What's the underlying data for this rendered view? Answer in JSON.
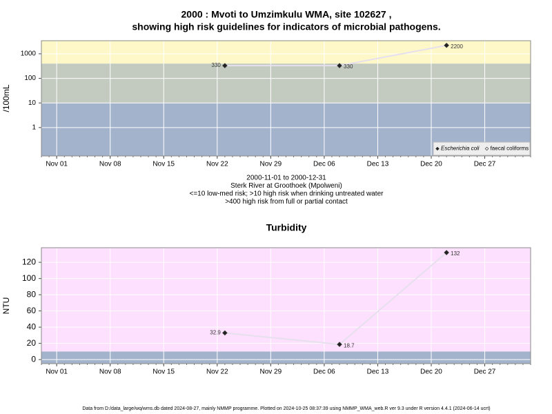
{
  "chart_data": [
    {
      "type": "line",
      "title": [
        "2000 : Mvoti to Umzimkulu WMA, site 102627 ,",
        "showing high risk guidelines for indicators of microbial pathogens."
      ],
      "ylabel": "/100mL",
      "notes": [
        "2000-11-01 to 2000-12-31",
        "Sterk River at Groothoek (Mpolweni)",
        "<=10 low-med risk; >10 high risk when drinking untreated water",
        ">400 high risk from full or partial contact"
      ],
      "log_y": true,
      "ylim": [
        0.07,
        3400
      ],
      "yticks": [
        1,
        10,
        100,
        1000
      ],
      "xlim": [
        "2000-10-30",
        "2001-01-02"
      ],
      "xticks": [
        {
          "value": "2000-11-01",
          "label": "Nov 01"
        },
        {
          "value": "2000-11-08",
          "label": "Nov 08"
        },
        {
          "value": "2000-11-15",
          "label": "Nov 15"
        },
        {
          "value": "2000-11-22",
          "label": "Nov 22"
        },
        {
          "value": "2000-11-29",
          "label": "Nov 29"
        },
        {
          "value": "2000-12-06",
          "label": "Dec 06"
        },
        {
          "value": "2000-12-13",
          "label": "Dec 13"
        },
        {
          "value": "2000-12-20",
          "label": "Dec 20"
        },
        {
          "value": "2000-12-27",
          "label": "Dec 27"
        }
      ],
      "bands": [
        {
          "to": 10,
          "color": "#a3b3cc"
        },
        {
          "to": 400,
          "color": "#c3cbc1"
        },
        {
          "color": "#fef8c9"
        }
      ],
      "grid": true,
      "legend": "bottom-right",
      "x": [
        "2000-11-23",
        "2000-12-08",
        "2000-12-22"
      ],
      "series": [
        {
          "name": "Escherichia coli",
          "color": "#222222",
          "values": [
            330,
            330,
            2200
          ]
        },
        {
          "name": "faecal coliforms",
          "color": "#ffffff",
          "values": [
            null,
            null,
            null
          ]
        }
      ]
    },
    {
      "type": "line",
      "title": "Turbidity",
      "ylabel": "NTU",
      "ylim": [
        -5,
        138
      ],
      "yticks": [
        0,
        20,
        40,
        60,
        80,
        100,
        120
      ],
      "xlim": [
        "2000-10-30",
        "2001-01-02"
      ],
      "xticks": [
        {
          "value": "2000-11-01",
          "label": "Nov 01"
        },
        {
          "value": "2000-11-08",
          "label": "Nov 08"
        },
        {
          "value": "2000-11-15",
          "label": "Nov 15"
        },
        {
          "value": "2000-11-22",
          "label": "Nov 22"
        },
        {
          "value": "2000-11-29",
          "label": "Nov 29"
        },
        {
          "value": "2000-12-06",
          "label": "Dec 06"
        },
        {
          "value": "2000-12-13",
          "label": "Dec 13"
        },
        {
          "value": "2000-12-20",
          "label": "Dec 20"
        },
        {
          "value": "2000-12-27",
          "label": "Dec 27"
        }
      ],
      "bands": [
        {
          "to": 10,
          "color": "#a3b3cc"
        },
        {
          "color": "#fde0fd"
        }
      ],
      "grid": true,
      "x": [
        "2000-11-23",
        "2000-12-08",
        "2000-12-22"
      ],
      "series": [
        {
          "color": "#222222",
          "values": [
            32.9,
            18.7,
            132
          ]
        }
      ]
    }
  ],
  "footer": "Data from D:/data_large/wq/wms.db dated 2024-08-27, mainly NMMP programme. Plotted on 2024-10-25 08:37:39 using NMMP_WMA_web.R ver 9.3 under R version 4.4.1 (2024-06-14 ucrt)"
}
